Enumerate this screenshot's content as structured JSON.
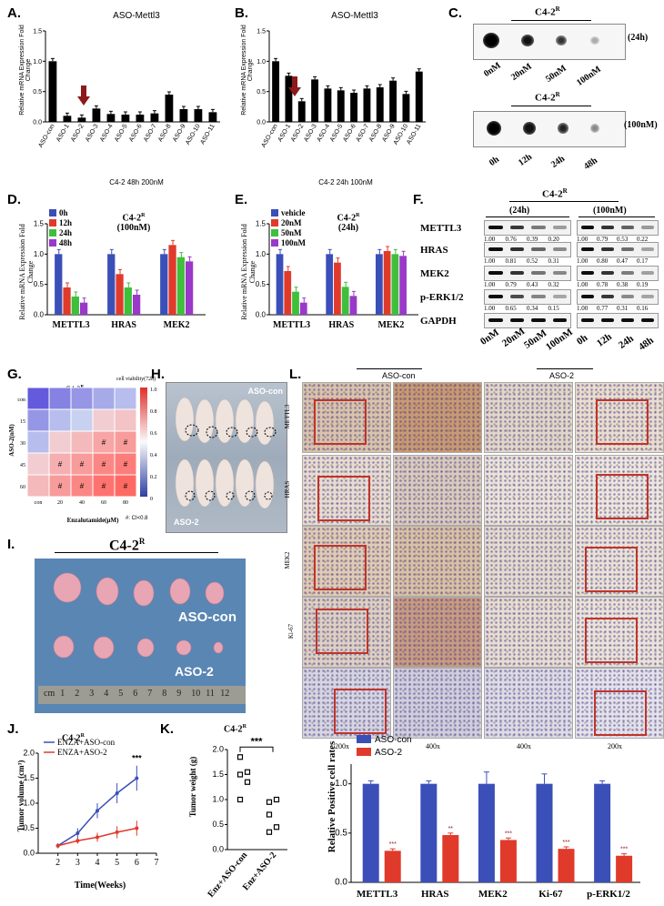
{
  "panels": {
    "A": {
      "label": "A.",
      "title": "ASO-Mettl3",
      "ylabel": "Relative mRNA Expression Fold Change",
      "caption": "C4-2 48h 200nM"
    },
    "B": {
      "label": "B.",
      "title": "ASO-Mettl3",
      "ylabel": "Relative mRNA Expression Fold Change",
      "caption": "C4-2 24h 100nM"
    },
    "C": {
      "label": "C.",
      "top_title": "C4-2",
      "top_sup": "R",
      "top_cond": "(24h)",
      "top_lanes": [
        "0nM",
        "20nM",
        "50nM",
        "100nM"
      ],
      "bot_title": "C4-2",
      "bot_sup": "R",
      "bot_cond": "(100nM)",
      "bot_lanes": [
        "0h",
        "12h",
        "24h",
        "48h"
      ]
    },
    "D": {
      "label": "D.",
      "title": "C4-2",
      "sup": "R",
      "subtitle": "(100nM)",
      "ylabel": "Relative mRNA Expression Fold Change",
      "legend": [
        "0h",
        "12h",
        "24h",
        "48h"
      ]
    },
    "E": {
      "label": "E.",
      "title": "C4-2",
      "sup": "R",
      "subtitle": "(24h)",
      "ylabel": "Relative mRNA Expression Fold Change",
      "legend": [
        "vehicle",
        "20nM",
        "50nM",
        "100nM"
      ]
    },
    "F": {
      "label": "F.",
      "title": "C4-2",
      "sup": "R",
      "group1": "(24h)",
      "group2": "(100nM)",
      "rows": [
        "METTL3",
        "HRAS",
        "MEK2",
        "p-ERK1/2",
        "GAPDH"
      ],
      "values": [
        [
          "1.00",
          "0.76",
          "0.39",
          "0.20",
          "1.00",
          "0.79",
          "0.53",
          "0.22"
        ],
        [
          "1.00",
          "0.81",
          "0.52",
          "0.31",
          "1.00",
          "0.80",
          "0.47",
          "0.17"
        ],
        [
          "1.00",
          "0.79",
          "0.43",
          "0.32",
          "1.00",
          "0.78",
          "0.38",
          "0.19"
        ],
        [
          "1.00",
          "0.65",
          "0.34",
          "0.15",
          "1.00",
          "0.77",
          "0.31",
          "0.16"
        ]
      ],
      "lanes": [
        "0nM",
        "20nM",
        "50nM",
        "100nM",
        "0h",
        "12h",
        "24h",
        "48h"
      ]
    },
    "G": {
      "label": "G.",
      "title": "C4-2",
      "sup": "R",
      "ylabel": "ASO-2(nM)",
      "xlabel": "Enzalutamide(μM)",
      "legend_title": "cell viability(72h)",
      "rows": [
        "con",
        "15",
        "30",
        "45",
        "60"
      ],
      "cols": [
        "con",
        "20",
        "40",
        "60",
        "80"
      ],
      "note": "#: CI<0.8",
      "cb_ticks": [
        "1.0",
        "0.8",
        "0.6",
        "0.4",
        "0.2",
        "0"
      ]
    },
    "H": {
      "label": "H.",
      "top": "ASO-con",
      "bottom": "ASO-2"
    },
    "I": {
      "label": "I.",
      "title": "C4-2",
      "sup": "R",
      "top": "ASO-con",
      "bottom": "ASO-2",
      "ruler": [
        "cm",
        "1",
        "2",
        "3",
        "4",
        "5",
        "6",
        "7",
        "8",
        "9",
        "10",
        "11",
        "12"
      ]
    },
    "J": {
      "label": "J.",
      "title": "C4-2",
      "sup": "R",
      "ylabel": "Tumor volume (cm³)",
      "xlabel": "Time(Weeks)",
      "legend": [
        "ENZA+ASO-con",
        "ENZA+ASO-2"
      ],
      "sig": "***"
    },
    "K": {
      "label": "K.",
      "title": "C4-2",
      "sup": "R",
      "ylabel": "Tumor weight (g)",
      "sig": "***",
      "xcats": [
        "Enz+ASO-con",
        "Enz+ASO-2"
      ]
    },
    "L": {
      "label": "L.",
      "group1": "ASO-con",
      "group2": "ASO-2",
      "rows": [
        "METTL3",
        "HRAS",
        "MEK2",
        "Ki-67",
        ""
      ],
      "mags": [
        "200x",
        "400x",
        "400x",
        "200x"
      ],
      "chart_ylabel": "Relative Positive cell rates",
      "legend": [
        "ASO-con",
        "ASO-2"
      ]
    }
  },
  "colors": {
    "blue": "#3b4fb8",
    "red": "#e03a2b",
    "green": "#3fbf3b",
    "purple": "#9a38c9",
    "brown": "#8b1a1a"
  },
  "chart_data": [
    {
      "type": "bar",
      "panel": "A",
      "categories": [
        "ASO-con",
        "ASO-1",
        "ASO-2",
        "ASO-3",
        "ASO-4",
        "ASO-5",
        "ASO-6",
        "ASO-7",
        "ASO-8",
        "ASO-9",
        "ASO-10",
        "ASO-11"
      ],
      "values": [
        1.0,
        0.1,
        0.07,
        0.22,
        0.13,
        0.12,
        0.12,
        0.14,
        0.45,
        0.21,
        0.21,
        0.16
      ],
      "ylim": [
        0,
        1.5
      ],
      "yticks": [
        0.0,
        0.5,
        1.0,
        1.5
      ]
    },
    {
      "type": "bar",
      "panel": "B",
      "categories": [
        "ASO-con",
        "ASO-1",
        "ASO-2",
        "ASO-3",
        "ASO-4",
        "ASO-5",
        "ASO-6",
        "ASO-7",
        "ASO-8",
        "ASO-9",
        "ASO-10",
        "ASO-11"
      ],
      "values": [
        1.0,
        0.76,
        0.34,
        0.7,
        0.55,
        0.52,
        0.48,
        0.55,
        0.57,
        0.68,
        0.46,
        0.83
      ],
      "ylim": [
        0,
        1.5
      ],
      "yticks": [
        0.0,
        0.5,
        1.0,
        1.5
      ]
    },
    {
      "type": "bar",
      "panel": "D",
      "categories": [
        "METTL3",
        "HRAS",
        "MEK2"
      ],
      "ylim": [
        0,
        1.5
      ],
      "yticks": [
        0.0,
        0.5,
        1.0,
        1.5
      ],
      "series": [
        {
          "name": "0h",
          "values": [
            1.0,
            1.0,
            1.0
          ]
        },
        {
          "name": "12h",
          "values": [
            0.45,
            0.67,
            1.15
          ]
        },
        {
          "name": "24h",
          "values": [
            0.3,
            0.45,
            0.95
          ]
        },
        {
          "name": "48h",
          "values": [
            0.2,
            0.33,
            0.88
          ]
        }
      ]
    },
    {
      "type": "bar",
      "panel": "E",
      "categories": [
        "METTL3",
        "HRAS",
        "MEK2"
      ],
      "ylim": [
        0,
        1.5
      ],
      "yticks": [
        0.0,
        0.5,
        1.0,
        1.5
      ],
      "series": [
        {
          "name": "vehicle",
          "values": [
            1.0,
            1.0,
            1.0
          ]
        },
        {
          "name": "20nM",
          "values": [
            0.72,
            0.86,
            1.05
          ]
        },
        {
          "name": "50nM",
          "values": [
            0.38,
            0.46,
            1.0
          ]
        },
        {
          "name": "100nM",
          "values": [
            0.2,
            0.31,
            0.97
          ]
        }
      ]
    },
    {
      "type": "heatmap",
      "panel": "G",
      "rows": [
        "con",
        "15",
        "30",
        "45",
        "60"
      ],
      "cols": [
        "con",
        "20",
        "40",
        "60",
        "80"
      ],
      "values": [
        [
          1.0,
          0.9,
          0.85,
          0.8,
          0.75
        ],
        [
          0.85,
          0.75,
          0.7,
          0.65,
          0.6
        ],
        [
          0.75,
          0.65,
          0.55,
          0.45,
          0.4
        ],
        [
          0.65,
          0.5,
          0.4,
          0.3,
          0.25
        ],
        [
          0.55,
          0.4,
          0.3,
          0.2,
          0.15
        ]
      ],
      "marks": [
        [
          2,
          3
        ],
        [
          2,
          4
        ],
        [
          3,
          1
        ],
        [
          3,
          2
        ],
        [
          3,
          3
        ],
        [
          3,
          4
        ],
        [
          4,
          1
        ],
        [
          4,
          2
        ],
        [
          4,
          3
        ],
        [
          4,
          4
        ]
      ]
    },
    {
      "type": "line",
      "panel": "J",
      "x": [
        2,
        3,
        4,
        5,
        6
      ],
      "xlim": [
        1,
        7
      ],
      "ylim": [
        0,
        2.0
      ],
      "yticks": [
        0.0,
        0.5,
        1.0,
        1.5,
        2.0
      ],
      "series": [
        {
          "name": "ENZA+ASO-con",
          "values": [
            0.15,
            0.4,
            0.85,
            1.2,
            1.5
          ]
        },
        {
          "name": "ENZA+ASO-2",
          "values": [
            0.15,
            0.25,
            0.32,
            0.42,
            0.5
          ]
        }
      ]
    },
    {
      "type": "scatter",
      "panel": "K",
      "ylim": [
        0,
        2.0
      ],
      "yticks": [
        0.0,
        0.5,
        1.0,
        1.5,
        2.0
      ],
      "series": [
        {
          "name": "Enz+ASO-con",
          "values": [
            1.85,
            1.55,
            1.5,
            1.35,
            1.0
          ]
        },
        {
          "name": "Enz+ASO-2",
          "values": [
            0.95,
            1.0,
            0.7,
            0.45,
            0.35
          ]
        }
      ]
    },
    {
      "type": "bar",
      "panel": "L",
      "categories": [
        "METTL3",
        "HRAS",
        "MEK2",
        "Ki-67",
        "p-ERK1/2"
      ],
      "ylim": [
        0,
        1.2
      ],
      "yticks": [
        0.0,
        0.5,
        1.0
      ],
      "series": [
        {
          "name": "ASO-con",
          "values": [
            1.0,
            1.0,
            1.0,
            1.0,
            1.0
          ]
        },
        {
          "name": "ASO-2",
          "values": [
            0.32,
            0.48,
            0.43,
            0.34,
            0.27
          ]
        }
      ],
      "sig": [
        "***",
        "**",
        "***",
        "***",
        "***"
      ]
    }
  ]
}
